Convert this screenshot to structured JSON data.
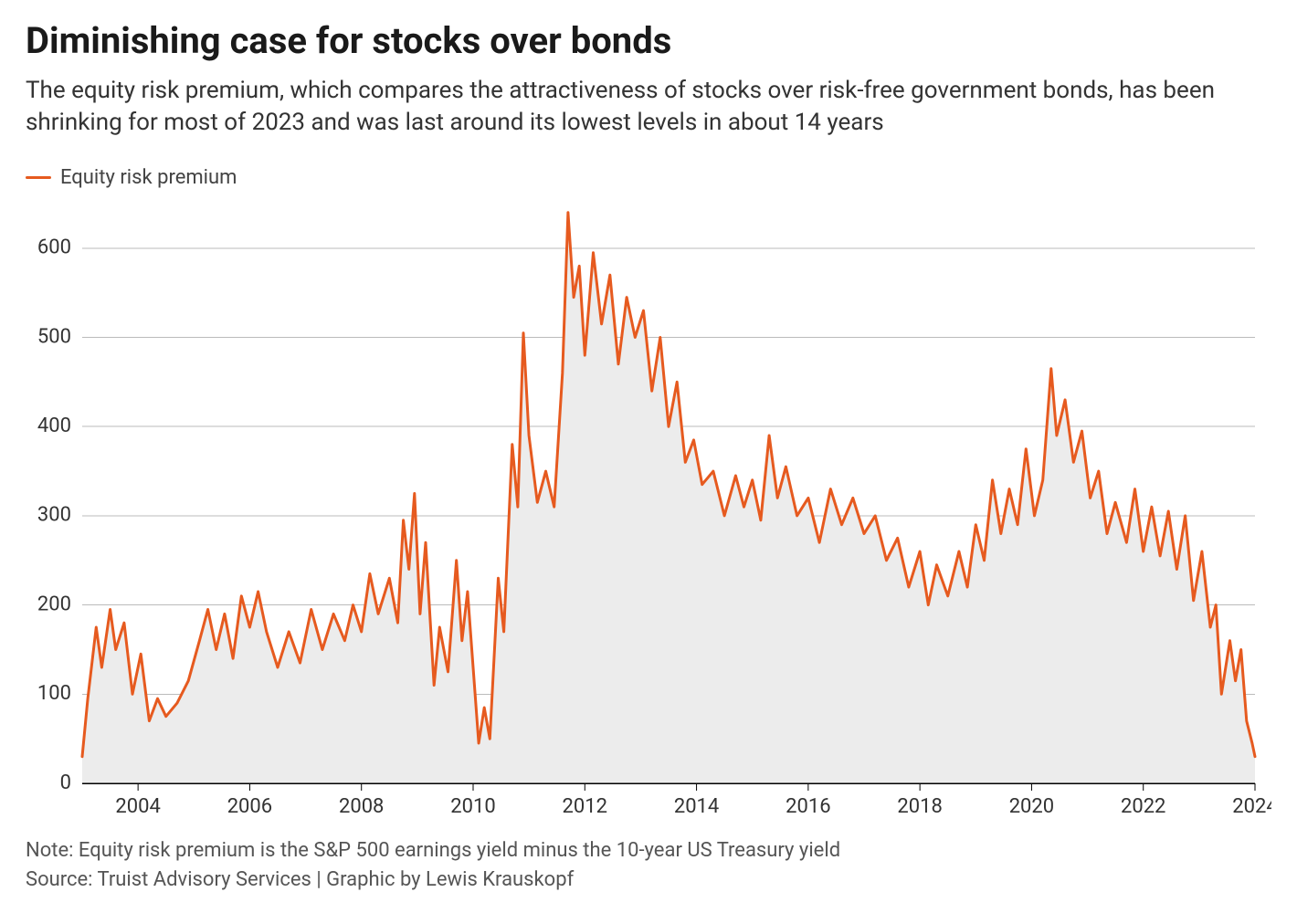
{
  "title": "Diminishing case for stocks over bonds",
  "subtitle": "The equity risk premium, which compares the attractiveness of stocks over risk-free government bonds, has been shrinking for most of 2023 and was last around its lowest levels in about 14 years",
  "legend_label": "Equity risk premium",
  "note": "Note: Equity risk premium is the S&P 500 earnings yield minus the 10-year US Treasury yield",
  "source": "Source: Truist Advisory Services | Graphic by Lewis Krauskopf",
  "chart": {
    "type": "area-line",
    "background_color": "#ffffff",
    "area_fill": "#ececec",
    "line_color": "#e65a1f",
    "line_width": 3,
    "grid_color": "#bbbbbb",
    "axis_color": "#000000",
    "tick_fontsize": 22,
    "x_domain": [
      2003,
      2024
    ],
    "y_domain": [
      0,
      650
    ],
    "y_ticks": [
      0,
      100,
      200,
      300,
      400,
      500,
      600
    ],
    "x_ticks": [
      2004,
      2006,
      2008,
      2010,
      2012,
      2014,
      2016,
      2018,
      2020,
      2022,
      2024
    ],
    "series": {
      "name": "Equity risk premium",
      "points": [
        [
          2003.0,
          30
        ],
        [
          2003.1,
          95
        ],
        [
          2003.25,
          175
        ],
        [
          2003.35,
          130
        ],
        [
          2003.5,
          195
        ],
        [
          2003.6,
          150
        ],
        [
          2003.75,
          180
        ],
        [
          2003.9,
          100
        ],
        [
          2004.05,
          145
        ],
        [
          2004.2,
          70
        ],
        [
          2004.35,
          95
        ],
        [
          2004.5,
          75
        ],
        [
          2004.7,
          90
        ],
        [
          2004.9,
          115
        ],
        [
          2005.1,
          160
        ],
        [
          2005.25,
          195
        ],
        [
          2005.4,
          150
        ],
        [
          2005.55,
          190
        ],
        [
          2005.7,
          140
        ],
        [
          2005.85,
          210
        ],
        [
          2006.0,
          175
        ],
        [
          2006.15,
          215
        ],
        [
          2006.3,
          170
        ],
        [
          2006.5,
          130
        ],
        [
          2006.7,
          170
        ],
        [
          2006.9,
          135
        ],
        [
          2007.1,
          195
        ],
        [
          2007.3,
          150
        ],
        [
          2007.5,
          190
        ],
        [
          2007.7,
          160
        ],
        [
          2007.85,
          200
        ],
        [
          2008.0,
          170
        ],
        [
          2008.15,
          235
        ],
        [
          2008.3,
          190
        ],
        [
          2008.5,
          230
        ],
        [
          2008.65,
          180
        ],
        [
          2008.75,
          295
        ],
        [
          2008.85,
          240
        ],
        [
          2008.95,
          325
        ],
        [
          2009.05,
          190
        ],
        [
          2009.15,
          270
        ],
        [
          2009.3,
          110
        ],
        [
          2009.4,
          175
        ],
        [
          2009.55,
          125
        ],
        [
          2009.7,
          250
        ],
        [
          2009.8,
          160
        ],
        [
          2009.9,
          215
        ],
        [
          2010.0,
          130
        ],
        [
          2010.1,
          45
        ],
        [
          2010.2,
          85
        ],
        [
          2010.3,
          50
        ],
        [
          2010.45,
          230
        ],
        [
          2010.55,
          170
        ],
        [
          2010.7,
          380
        ],
        [
          2010.8,
          310
        ],
        [
          2010.9,
          505
        ],
        [
          2011.0,
          390
        ],
        [
          2011.15,
          315
        ],
        [
          2011.3,
          350
        ],
        [
          2011.45,
          310
        ],
        [
          2011.6,
          460
        ],
        [
          2011.7,
          640
        ],
        [
          2011.8,
          545
        ],
        [
          2011.9,
          580
        ],
        [
          2012.0,
          480
        ],
        [
          2012.15,
          595
        ],
        [
          2012.3,
          515
        ],
        [
          2012.45,
          570
        ],
        [
          2012.6,
          470
        ],
        [
          2012.75,
          545
        ],
        [
          2012.9,
          500
        ],
        [
          2013.05,
          530
        ],
        [
          2013.2,
          440
        ],
        [
          2013.35,
          500
        ],
        [
          2013.5,
          400
        ],
        [
          2013.65,
          450
        ],
        [
          2013.8,
          360
        ],
        [
          2013.95,
          385
        ],
        [
          2014.1,
          335
        ],
        [
          2014.3,
          350
        ],
        [
          2014.5,
          300
        ],
        [
          2014.7,
          345
        ],
        [
          2014.85,
          310
        ],
        [
          2015.0,
          340
        ],
        [
          2015.15,
          295
        ],
        [
          2015.3,
          390
        ],
        [
          2015.45,
          320
        ],
        [
          2015.6,
          355
        ],
        [
          2015.8,
          300
        ],
        [
          2016.0,
          320
        ],
        [
          2016.2,
          270
        ],
        [
          2016.4,
          330
        ],
        [
          2016.6,
          290
        ],
        [
          2016.8,
          320
        ],
        [
          2017.0,
          280
        ],
        [
          2017.2,
          300
        ],
        [
          2017.4,
          250
        ],
        [
          2017.6,
          275
        ],
        [
          2017.8,
          220
        ],
        [
          2018.0,
          260
        ],
        [
          2018.15,
          200
        ],
        [
          2018.3,
          245
        ],
        [
          2018.5,
          210
        ],
        [
          2018.7,
          260
        ],
        [
          2018.85,
          220
        ],
        [
          2019.0,
          290
        ],
        [
          2019.15,
          250
        ],
        [
          2019.3,
          340
        ],
        [
          2019.45,
          280
        ],
        [
          2019.6,
          330
        ],
        [
          2019.75,
          290
        ],
        [
          2019.9,
          375
        ],
        [
          2020.05,
          300
        ],
        [
          2020.2,
          340
        ],
        [
          2020.35,
          465
        ],
        [
          2020.45,
          390
        ],
        [
          2020.6,
          430
        ],
        [
          2020.75,
          360
        ],
        [
          2020.9,
          395
        ],
        [
          2021.05,
          320
        ],
        [
          2021.2,
          350
        ],
        [
          2021.35,
          280
        ],
        [
          2021.5,
          315
        ],
        [
          2021.7,
          270
        ],
        [
          2021.85,
          330
        ],
        [
          2022.0,
          260
        ],
        [
          2022.15,
          310
        ],
        [
          2022.3,
          255
        ],
        [
          2022.45,
          305
        ],
        [
          2022.6,
          240
        ],
        [
          2022.75,
          300
        ],
        [
          2022.9,
          205
        ],
        [
          2023.05,
          260
        ],
        [
          2023.2,
          175
        ],
        [
          2023.3,
          200
        ],
        [
          2023.4,
          100
        ],
        [
          2023.55,
          160
        ],
        [
          2023.65,
          115
        ],
        [
          2023.75,
          150
        ],
        [
          2023.85,
          70
        ],
        [
          2023.95,
          45
        ],
        [
          2024.0,
          30
        ]
      ]
    }
  }
}
